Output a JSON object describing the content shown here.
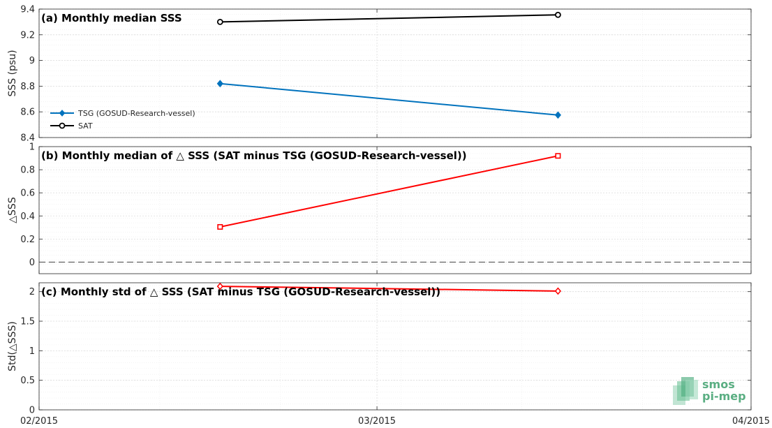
{
  "chart_data": [
    {
      "type": "line",
      "title": "(a) Monthly median SSS",
      "ylabel": "SSS (psu)",
      "xlim": [
        "2015-02-01",
        "2015-04-01"
      ],
      "ylim": [
        8.4,
        9.4
      ],
      "yticks": [
        8.4,
        8.6,
        8.8,
        9,
        9.2,
        9.4
      ],
      "grid": true,
      "legend": "center-left",
      "series": [
        {
          "name": "TSG (GOSUD-Research-vessel)",
          "color": "#0072BD",
          "marker": "diamond",
          "x": [
            "2015-02-16",
            "2015-03-16"
          ],
          "values": [
            8.82,
            8.575
          ]
        },
        {
          "name": "SAT",
          "color": "#000000",
          "marker": "circle",
          "x": [
            "2015-02-16",
            "2015-03-16"
          ],
          "values": [
            9.3,
            9.355
          ]
        }
      ]
    },
    {
      "type": "line",
      "title": "(b) Monthly median of △ SSS (SAT minus TSG (GOSUD-Research-vessel))",
      "ylabel": "△SSS",
      "xlim": [
        "2015-02-01",
        "2015-04-01"
      ],
      "ylim": [
        -0.1,
        1
      ],
      "yticks": [
        0,
        0.2,
        0.4,
        0.6,
        0.8,
        1
      ],
      "grid": true,
      "reference_line": 0,
      "series": [
        {
          "color": "#ff0000",
          "marker": "square",
          "x": [
            "2015-02-16",
            "2015-03-16"
          ],
          "values": [
            0.305,
            0.92
          ]
        }
      ]
    },
    {
      "type": "line",
      "title": "(c) Monthly std of △ SSS (SAT minus TSG (GOSUD-Research-vessel))",
      "ylabel": "Std(△SSS)",
      "xlim": [
        "2015-02-01",
        "2015-04-01"
      ],
      "ylim": [
        0,
        2.15
      ],
      "yticks": [
        0,
        0.5,
        1,
        1.5,
        2
      ],
      "grid": true,
      "series": [
        {
          "color": "#ff0000",
          "marker": "diamond",
          "x": [
            "2015-02-16",
            "2015-03-16"
          ],
          "values": [
            2.09,
            2.01
          ]
        }
      ]
    }
  ],
  "xticks": [
    {
      "date": "2015-02-01",
      "label": "02/2015"
    },
    {
      "date": "2015-03-01",
      "label": "03/2015"
    },
    {
      "date": "2015-04-01",
      "label": "04/2015"
    }
  ],
  "logo": {
    "line1": "smos",
    "line2": "pi-mep",
    "color": "#5aae82"
  }
}
